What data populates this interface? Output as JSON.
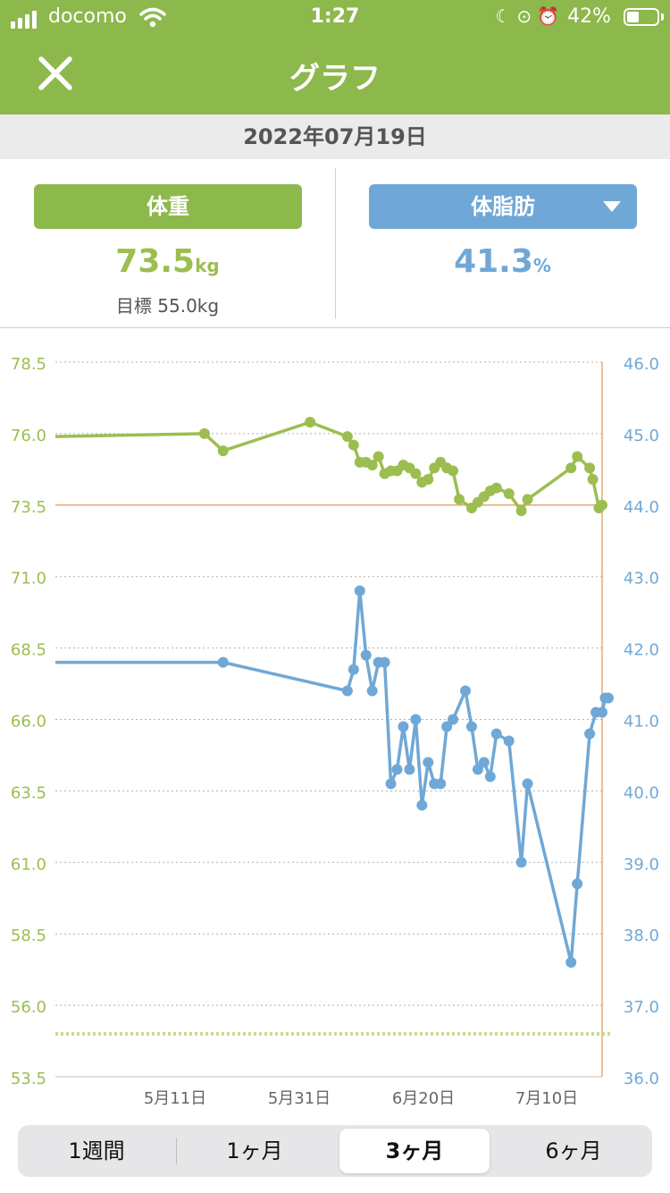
{
  "status_bar": {
    "carrier": "docomo",
    "time": "1:27",
    "battery": "42%",
    "battery_level": 0.42,
    "icons": [
      "signal-icon",
      "wifi-icon",
      "moon-icon",
      "rotation-lock-icon",
      "alarm-icon",
      "battery-icon"
    ]
  },
  "header": {
    "title": "グラフ",
    "close_icon": "close-icon"
  },
  "date": "2022年07月19日",
  "weight": {
    "label": "体重",
    "value": "73.5",
    "unit": "kg",
    "goal": "目標 55.0kg"
  },
  "bodyfat": {
    "label": "体脂肪",
    "value": "41.3",
    "unit": "%",
    "dropdown_icon": "caret-down-icon"
  },
  "colors": {
    "accent": "#8db84c",
    "weight": "#9cbe50",
    "fat": "#6fa8d6",
    "current": "#e8a878",
    "goal": "#c8dc8c"
  },
  "chart_data": {
    "type": "line",
    "y_left": {
      "ticks": [
        "78.5",
        "76.0",
        "73.5",
        "71.0",
        "68.5",
        "66.0",
        "63.5",
        "61.0",
        "58.5",
        "56.0",
        "53.5"
      ],
      "range": [
        53.5,
        78.5
      ]
    },
    "y_right": {
      "ticks": [
        "46.0",
        "45.0",
        "44.0",
        "43.0",
        "42.0",
        "41.0",
        "40.0",
        "39.0",
        "38.0",
        "37.0",
        "36.0"
      ],
      "range": [
        36.0,
        46.0
      ]
    },
    "x_ticks": [
      "5月11日",
      "5月31日",
      "6月20日",
      "7月10日"
    ],
    "x_range": [
      -14,
      74
    ],
    "goal_weight": 55.0,
    "current_weight": 73.5,
    "series": [
      {
        "axis": "left",
        "x": [
          -14,
          10,
          13,
          27,
          33,
          34,
          35,
          36,
          37,
          38,
          39,
          40,
          41,
          42,
          43,
          44,
          45,
          46,
          47,
          48,
          49,
          50,
          51,
          53,
          54,
          55,
          56,
          57,
          59,
          61,
          62,
          69,
          70,
          72,
          72.5,
          73.5,
          74
        ],
        "values": [
          75.9,
          76.0,
          75.4,
          76.4,
          75.9,
          75.6,
          75.0,
          75.0,
          74.9,
          75.2,
          74.6,
          74.7,
          74.7,
          74.9,
          74.8,
          74.6,
          74.3,
          74.4,
          74.8,
          75.0,
          74.8,
          74.7,
          73.7,
          73.4,
          73.6,
          73.8,
          74.0,
          74.1,
          73.9,
          73.3,
          73.7,
          74.8,
          75.2,
          74.8,
          74.4,
          73.4,
          73.5
        ]
      },
      {
        "axis": "right",
        "x": [
          -14,
          13,
          33,
          34,
          35,
          36,
          37,
          38,
          39,
          40,
          41,
          42,
          43,
          44,
          45,
          46,
          47,
          48,
          49,
          50,
          52,
          53,
          54,
          55,
          56,
          57,
          59,
          61,
          62,
          69,
          70,
          72,
          73,
          74,
          74.5,
          75
        ],
        "values": [
          41.8,
          41.8,
          41.4,
          41.7,
          42.8,
          41.9,
          41.4,
          41.8,
          41.8,
          40.1,
          40.3,
          40.9,
          40.3,
          41.0,
          39.8,
          40.4,
          40.1,
          40.1,
          40.9,
          41.0,
          41.4,
          40.9,
          40.3,
          40.4,
          40.2,
          40.8,
          40.7,
          39.0,
          40.1,
          37.6,
          38.7,
          40.8,
          41.1,
          41.1,
          41.3,
          41.3
        ]
      }
    ]
  },
  "range_tabs": [
    {
      "label": "1週間"
    },
    {
      "label": "1ヶ月"
    },
    {
      "label": "3ヶ月",
      "selected": true
    },
    {
      "label": "6ヶ月"
    }
  ]
}
